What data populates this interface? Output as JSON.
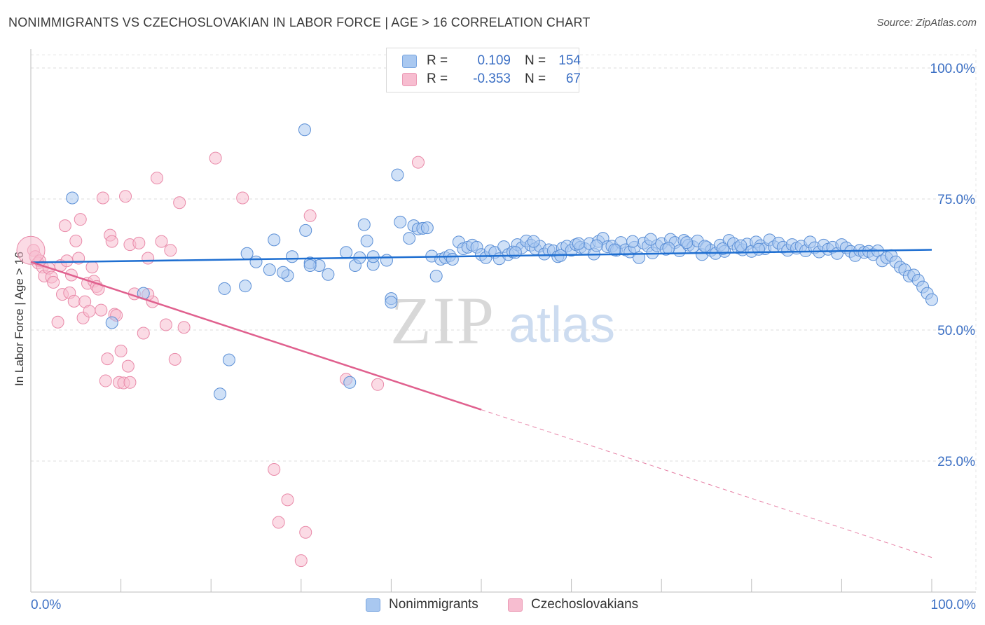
{
  "title": "NONIMMIGRANTS VS CZECHOSLOVAKIAN IN LABOR FORCE | AGE > 16 CORRELATION CHART",
  "source": "Source: ZipAtlas.com",
  "watermark": {
    "zip": "ZIP",
    "atlas": "atlas"
  },
  "legend": {
    "rows": [
      {
        "r_label": "R =",
        "r_value": "0.109",
        "n_label": "N =",
        "n_value": "154",
        "color": "#a9c8f0"
      },
      {
        "r_label": "R =",
        "r_value": "-0.353",
        "n_label": "N =",
        "n_value": "67",
        "color": "#f7bdd0"
      }
    ]
  },
  "bottom_legend": {
    "items": [
      "Nonimmigrants",
      "Czechoslovakians"
    ]
  },
  "colors": {
    "blue_fill": "#a9c8f0",
    "blue_stroke": "#5b8fd6",
    "blue_line": "#1f6fd1",
    "pink_fill": "#f7bdd0",
    "pink_stroke": "#e98aa9",
    "pink_line": "#e0608e",
    "tick_label": "#3b6fc4"
  },
  "chart_data": {
    "type": "scatter",
    "title": "NONIMMIGRANTS VS CZECHOSLOVAKIAN IN LABOR FORCE | AGE > 16 CORRELATION CHART",
    "xlabel": "",
    "ylabel": "In Labor Force | Age > 16",
    "xlim": [
      0,
      100
    ],
    "ylim": [
      0,
      105
    ],
    "x_tick_labels": [
      "0.0%",
      "100.0%"
    ],
    "y_ticks": [
      25,
      50,
      75,
      100
    ],
    "y_tick_labels": [
      "25.0%",
      "50.0%",
      "75.0%",
      "100.0%"
    ],
    "grid": true,
    "legend_position": "top-center",
    "series": [
      {
        "name": "Nonimmigrants",
        "r": 0.109,
        "n": 154,
        "trend": {
          "x": [
            0,
            100
          ],
          "y": [
            62.9,
            65.3
          ]
        },
        "points": [
          [
            4.6,
            75.2
          ],
          [
            12.5,
            57.0
          ],
          [
            9.0,
            51.4
          ],
          [
            21.5,
            57.9
          ],
          [
            23.8,
            58.4
          ],
          [
            22.0,
            44.3
          ],
          [
            21.0,
            37.8
          ],
          [
            24.0,
            64.6
          ],
          [
            25.0,
            63.0
          ],
          [
            26.5,
            61.5
          ],
          [
            27.0,
            67.2
          ],
          [
            28.5,
            60.4
          ],
          [
            30.5,
            69.0
          ],
          [
            32.0,
            62.3
          ],
          [
            31.0,
            62.8
          ],
          [
            33.0,
            60.6
          ],
          [
            35.0,
            64.8
          ],
          [
            36.0,
            62.3
          ],
          [
            37.0,
            70.1
          ],
          [
            37.3,
            67.0
          ],
          [
            38.0,
            62.5
          ],
          [
            39.5,
            63.3
          ],
          [
            38.0,
            64.0
          ],
          [
            40.0,
            56.0
          ],
          [
            40.0,
            55.3
          ],
          [
            41.0,
            70.6
          ],
          [
            42.0,
            67.5
          ],
          [
            42.5,
            69.9
          ],
          [
            43.0,
            69.3
          ],
          [
            43.5,
            69.4
          ],
          [
            44.5,
            64.1
          ],
          [
            45.0,
            60.3
          ],
          [
            45.5,
            63.5
          ],
          [
            46.0,
            63.8
          ],
          [
            46.5,
            64.2
          ],
          [
            47.5,
            66.8
          ],
          [
            48.0,
            65.5
          ],
          [
            48.5,
            65.8
          ],
          [
            49.0,
            66.2
          ],
          [
            49.5,
            65.8
          ],
          [
            50.0,
            64.4
          ],
          [
            50.5,
            63.8
          ],
          [
            51.0,
            65.1
          ],
          [
            51.5,
            64.8
          ],
          [
            52.0,
            63.6
          ],
          [
            52.5,
            65.9
          ],
          [
            53.0,
            64.4
          ],
          [
            53.5,
            64.9
          ],
          [
            54.0,
            66.3
          ],
          [
            54.5,
            65.7
          ],
          [
            55.0,
            67.0
          ],
          [
            55.5,
            66.2
          ],
          [
            56.0,
            65.5
          ],
          [
            56.5,
            66.0
          ],
          [
            57.0,
            64.5
          ],
          [
            57.5,
            65.3
          ],
          [
            58.0,
            65.1
          ],
          [
            58.5,
            64.0
          ],
          [
            59.0,
            65.6
          ],
          [
            59.5,
            66.0
          ],
          [
            60.0,
            65.2
          ],
          [
            60.5,
            66.3
          ],
          [
            61.0,
            65.8
          ],
          [
            61.5,
            65.5
          ],
          [
            62.0,
            66.5
          ],
          [
            62.5,
            64.5
          ],
          [
            63.0,
            66.9
          ],
          [
            63.5,
            67.5
          ],
          [
            64.0,
            65.9
          ],
          [
            64.5,
            66.0
          ],
          [
            65.0,
            65.2
          ],
          [
            65.5,
            66.7
          ],
          [
            66.0,
            65.3
          ],
          [
            66.5,
            64.9
          ],
          [
            67.0,
            65.8
          ],
          [
            67.5,
            63.8
          ],
          [
            68.0,
            66.6
          ],
          [
            68.5,
            66.0
          ],
          [
            69.0,
            64.7
          ],
          [
            69.5,
            66.1
          ],
          [
            70.0,
            66.5
          ],
          [
            70.5,
            65.4
          ],
          [
            71.0,
            67.3
          ],
          [
            71.5,
            66.7
          ],
          [
            72.0,
            65.1
          ],
          [
            72.5,
            67.1
          ],
          [
            73.0,
            66.2
          ],
          [
            73.5,
            65.9
          ],
          [
            74.0,
            67.0
          ],
          [
            74.5,
            64.4
          ],
          [
            75.0,
            65.8
          ],
          [
            75.5,
            65.2
          ],
          [
            76.0,
            64.6
          ],
          [
            76.5,
            66.2
          ],
          [
            77.0,
            65.0
          ],
          [
            77.5,
            67.1
          ],
          [
            78.0,
            66.5
          ],
          [
            78.5,
            65.7
          ],
          [
            79.0,
            65.3
          ],
          [
            79.5,
            66.4
          ],
          [
            80.0,
            65.0
          ],
          [
            80.5,
            66.8
          ],
          [
            81.0,
            66.1
          ],
          [
            81.5,
            65.5
          ],
          [
            82.0,
            67.2
          ],
          [
            82.5,
            65.9
          ],
          [
            83.0,
            66.6
          ],
          [
            83.5,
            65.8
          ],
          [
            84.0,
            65.2
          ],
          [
            84.5,
            66.3
          ],
          [
            85.0,
            65.6
          ],
          [
            85.5,
            66.0
          ],
          [
            86.0,
            65.1
          ],
          [
            86.5,
            66.8
          ],
          [
            87.0,
            65.7
          ],
          [
            87.5,
            64.9
          ],
          [
            88.0,
            66.2
          ],
          [
            88.5,
            65.4
          ],
          [
            89.0,
            65.8
          ],
          [
            89.5,
            64.6
          ],
          [
            90.0,
            66.3
          ],
          [
            90.5,
            65.7
          ],
          [
            91.0,
            65.0
          ],
          [
            91.5,
            64.2
          ],
          [
            92.0,
            65.2
          ],
          [
            92.5,
            64.8
          ],
          [
            93.0,
            65.0
          ],
          [
            93.5,
            64.4
          ],
          [
            94.0,
            65.1
          ],
          [
            94.5,
            63.2
          ],
          [
            95.0,
            63.8
          ],
          [
            95.5,
            64.2
          ],
          [
            96.0,
            63.0
          ],
          [
            96.5,
            62.0
          ],
          [
            97.0,
            61.5
          ],
          [
            97.5,
            60.3
          ],
          [
            98.0,
            60.5
          ],
          [
            98.5,
            59.5
          ],
          [
            99.0,
            58.2
          ],
          [
            99.5,
            57.0
          ],
          [
            100.0,
            55.8
          ],
          [
            35.4,
            40.0
          ],
          [
            40.7,
            79.6
          ],
          [
            30.4,
            88.2
          ],
          [
            31.0,
            62.3
          ],
          [
            28.0,
            61.0
          ],
          [
            29.0,
            64.0
          ],
          [
            36.5,
            63.8
          ],
          [
            44.0,
            69.5
          ],
          [
            46.8,
            63.5
          ],
          [
            53.8,
            64.8
          ],
          [
            55.8,
            66.9
          ],
          [
            58.8,
            64.2
          ],
          [
            60.8,
            66.5
          ],
          [
            62.8,
            66.1
          ],
          [
            64.8,
            65.3
          ],
          [
            66.8,
            66.9
          ],
          [
            68.8,
            67.3
          ],
          [
            70.8,
            65.6
          ],
          [
            72.8,
            66.7
          ],
          [
            74.8,
            66.0
          ],
          [
            76.8,
            65.5
          ],
          [
            78.8,
            66.1
          ],
          [
            80.8,
            65.4
          ]
        ]
      },
      {
        "name": "Czechoslovakians",
        "r": -0.353,
        "n": 67,
        "trend": {
          "x": [
            0,
            50
          ],
          "y": [
            63.0,
            34.8
          ],
          "dashed_extension": {
            "x": [
              50,
              100
            ],
            "y": [
              34.8,
              6.6
            ]
          }
        },
        "points": [
          [
            0.3,
            65.2
          ],
          [
            0.5,
            64.0
          ],
          [
            0.8,
            62.8
          ],
          [
            1.0,
            63.2
          ],
          [
            1.3,
            62.0
          ],
          [
            1.5,
            60.3
          ],
          [
            2.0,
            61.8
          ],
          [
            2.3,
            60.1
          ],
          [
            2.5,
            59.1
          ],
          [
            3.0,
            51.5
          ],
          [
            3.3,
            62.3
          ],
          [
            3.5,
            56.8
          ],
          [
            3.8,
            69.9
          ],
          [
            4.0,
            63.2
          ],
          [
            4.3,
            57.1
          ],
          [
            4.5,
            60.5
          ],
          [
            4.8,
            55.5
          ],
          [
            5.0,
            67.0
          ],
          [
            5.3,
            63.7
          ],
          [
            5.5,
            71.1
          ],
          [
            5.8,
            52.3
          ],
          [
            6.0,
            55.4
          ],
          [
            6.3,
            58.9
          ],
          [
            6.5,
            53.6
          ],
          [
            6.8,
            62.0
          ],
          [
            7.0,
            59.3
          ],
          [
            7.3,
            58.3
          ],
          [
            7.5,
            57.8
          ],
          [
            7.8,
            53.8
          ],
          [
            8.0,
            75.2
          ],
          [
            8.3,
            40.3
          ],
          [
            8.5,
            44.5
          ],
          [
            8.8,
            68.1
          ],
          [
            9.0,
            66.9
          ],
          [
            9.3,
            53.0
          ],
          [
            9.5,
            52.8
          ],
          [
            9.8,
            40.0
          ],
          [
            10.0,
            46.0
          ],
          [
            10.3,
            39.9
          ],
          [
            10.5,
            75.5
          ],
          [
            10.8,
            43.1
          ],
          [
            11.0,
            66.3
          ],
          [
            11.5,
            56.9
          ],
          [
            12.0,
            66.6
          ],
          [
            12.5,
            49.4
          ],
          [
            13.0,
            63.7
          ],
          [
            13.5,
            55.4
          ],
          [
            14.0,
            79.0
          ],
          [
            14.5,
            66.9
          ],
          [
            15.0,
            51.0
          ],
          [
            15.5,
            65.2
          ],
          [
            16.0,
            44.4
          ],
          [
            16.5,
            74.3
          ],
          [
            17.0,
            50.5
          ],
          [
            20.5,
            82.8
          ],
          [
            23.5,
            75.2
          ],
          [
            27.0,
            23.4
          ],
          [
            27.5,
            13.3
          ],
          [
            28.5,
            17.6
          ],
          [
            30.0,
            6.0
          ],
          [
            30.5,
            11.4
          ],
          [
            31.0,
            71.8
          ],
          [
            35.0,
            40.6
          ],
          [
            38.5,
            39.6
          ],
          [
            43.0,
            82.0
          ],
          [
            11.0,
            40.0
          ],
          [
            13.0,
            56.8
          ]
        ]
      }
    ]
  }
}
